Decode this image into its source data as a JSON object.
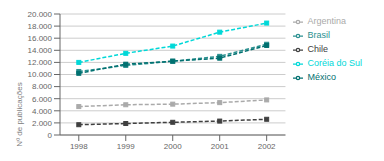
{
  "chart_data": {
    "type": "line",
    "x": [
      1998,
      1999,
      2000,
      2001,
      2002
    ],
    "xlim": [
      1997.6,
      2002.4
    ],
    "xticks": [
      1998,
      1999,
      2000,
      2001,
      2002
    ],
    "ylabel": "Nº de publicações",
    "ylim": [
      0,
      20000
    ],
    "yticks": [
      0,
      {
        "value": 2000,
        "label": "2.000"
      },
      {
        "value": 4000,
        "label": "4.000"
      },
      {
        "value": 6000,
        "label": "6.000"
      },
      {
        "value": 8000,
        "label": "8.000"
      },
      {
        "value": 10000,
        "label": "10.000"
      },
      {
        "value": 12000,
        "label": "12.000"
      },
      {
        "value": 14000,
        "label": "14.000"
      },
      {
        "value": 16000,
        "label": "16.000"
      },
      {
        "value": 18000,
        "label": "18.000"
      },
      {
        "value": 20000,
        "label": "20.000"
      }
    ],
    "grid": true,
    "legend": "right",
    "marker": "square",
    "line_style": "dashed",
    "series": [
      {
        "name": "Coréia do Sul",
        "color": "#00d8d8",
        "values": [
          12000,
          13500,
          14700,
          17000,
          18500
        ]
      },
      {
        "name": "Brasil",
        "color": "#2a9090",
        "values": [
          10500,
          11500,
          12200,
          13000,
          15000
        ]
      },
      {
        "name": "México",
        "color": "#007070",
        "values": [
          10200,
          11700,
          12200,
          12700,
          14800
        ]
      },
      {
        "name": "Argentina",
        "color": "#aaaaaa",
        "values": [
          4700,
          5000,
          5100,
          5350,
          5800
        ]
      },
      {
        "name": "Chile",
        "color": "#404040",
        "values": [
          1700,
          1900,
          2100,
          2300,
          2600
        ]
      }
    ]
  }
}
